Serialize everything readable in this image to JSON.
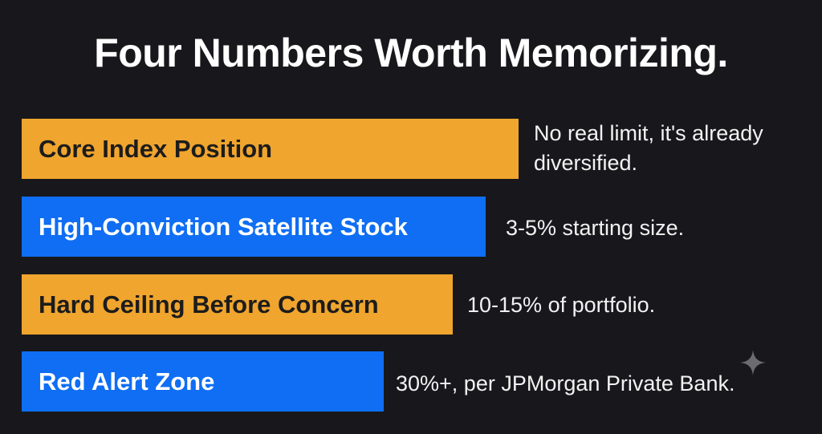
{
  "title": "Four Numbers Worth Memorizing.",
  "items": [
    {
      "label": "Core Index Position",
      "note": "No real limit, it's already diversified."
    },
    {
      "label": "High-Conviction Satellite Stock",
      "note": "3-5% starting size."
    },
    {
      "label": "Hard Ceiling Before Concern",
      "note": "10-15% of portfolio."
    },
    {
      "label": "Red Alert Zone",
      "note": "30%+, per JPMorgan Private Bank."
    }
  ]
}
